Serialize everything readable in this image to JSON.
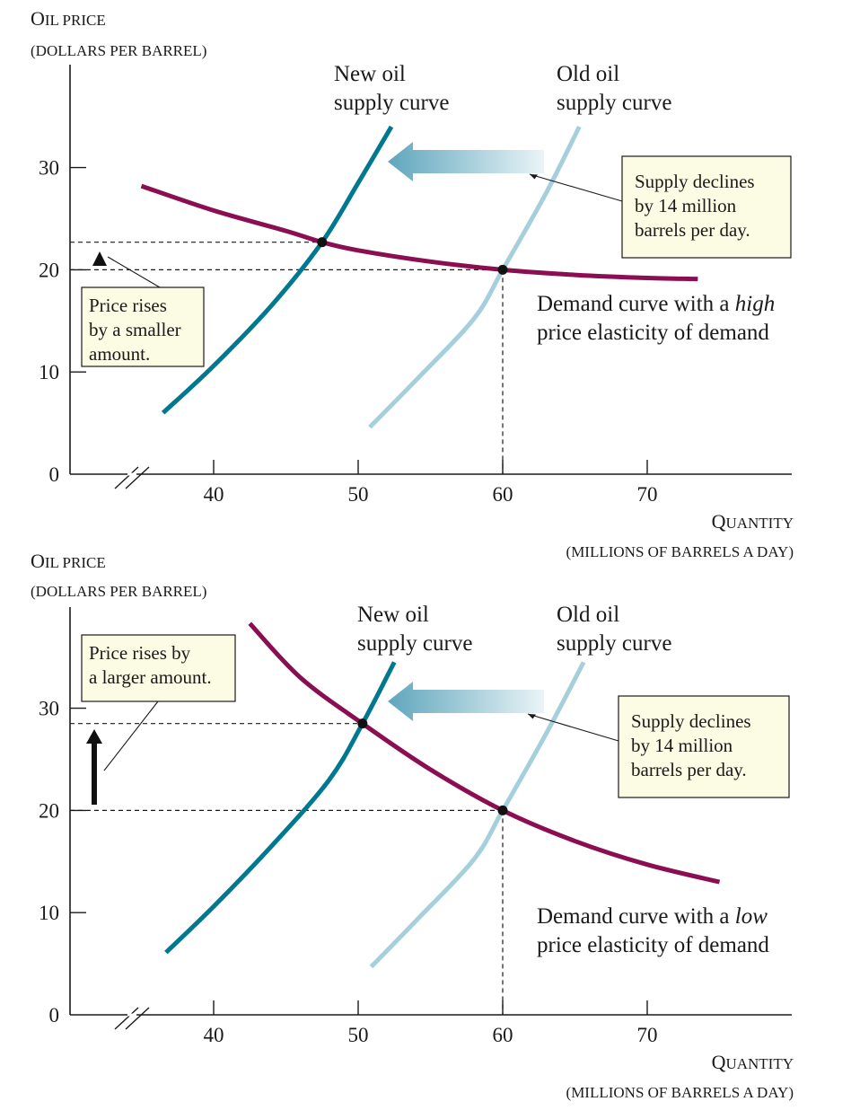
{
  "colors": {
    "demand": "#8b0e52",
    "new_supply": "#00788f",
    "old_supply": "#a6cfdc",
    "note_bg": "#fcfbe3",
    "axis": "#1a1a1a"
  },
  "chart_data": [
    {
      "type": "line",
      "ylabel_line1_cap": "O",
      "ylabel_line1_rest": "IL PRICE",
      "ylabel_line2": "(DOLLARS PER BARREL)",
      "xlabel_line1_cap": "Q",
      "xlabel_line1_rest": "UANTITY",
      "xlabel_line2": "(MILLIONS OF BARRELS A DAY)",
      "xlim": [
        30,
        80
      ],
      "ylim": [
        0,
        36
      ],
      "x_ticks": [
        40,
        50,
        60,
        70
      ],
      "y_ticks": [
        0,
        10,
        20,
        30
      ],
      "axis_break": "x",
      "series": [
        {
          "id": "demand",
          "x": [
            35,
            40,
            45,
            47.5,
            50,
            55,
            60,
            65,
            70,
            73.5
          ],
          "y": [
            28.2,
            25.8,
            23.8,
            22.7,
            21.9,
            20.8,
            20,
            19.5,
            19.2,
            19.1
          ]
        },
        {
          "name": "New oil supply curve",
          "id": "new_supply",
          "x": [
            36.5,
            40,
            44,
            47.5,
            50,
            52.3
          ],
          "y": [
            6,
            10.6,
            16.5,
            22.7,
            28.5,
            34
          ]
        },
        {
          "name": "Old oil supply curve",
          "id": "old_supply",
          "x": [
            50.8,
            54,
            58,
            60,
            63,
            65.3
          ],
          "y": [
            4.6,
            9.2,
            15.2,
            20,
            27.5,
            34
          ]
        }
      ],
      "equilibria": [
        {
          "x": 47.5,
          "y": 22.7
        },
        {
          "x": 60,
          "y": 20
        }
      ],
      "new_supply_label": [
        "New oil",
        "supply curve"
      ],
      "old_supply_label": [
        "Old oil",
        "supply curve"
      ],
      "supply_note": [
        "Supply declines",
        "by 14 million",
        "barrels per day."
      ],
      "price_note": [
        "Price rises",
        "by a smaller",
        "amount."
      ],
      "demand_label_line1_pre": "Demand curve with a ",
      "demand_label_line1_em": "high",
      "demand_label_line2": "price elasticity of demand"
    },
    {
      "type": "line",
      "ylabel_line1_cap": "O",
      "ylabel_line1_rest": "IL PRICE",
      "ylabel_line2": "(DOLLARS PER BARREL)",
      "xlabel_line1_cap": "Q",
      "xlabel_line1_rest": "UANTITY",
      "xlabel_line2": "(MILLIONS OF BARRELS A DAY)",
      "xlim": [
        30,
        80
      ],
      "ylim": [
        0,
        40
      ],
      "x_ticks": [
        40,
        50,
        60,
        70
      ],
      "y_ticks": [
        0,
        10,
        20,
        30
      ],
      "axis_break": "x",
      "series": [
        {
          "id": "demand",
          "x": [
            42.5,
            46,
            50.3,
            55,
            60,
            65,
            70,
            75
          ],
          "y": [
            38.3,
            33,
            28.5,
            24,
            20,
            17,
            14.7,
            13
          ]
        },
        {
          "name": "New oil supply curve",
          "id": "new_supply",
          "x": [
            36.7,
            40,
            44,
            48,
            50.3,
            52.5
          ],
          "y": [
            6.1,
            10.6,
            16.5,
            23,
            28.5,
            34.5
          ]
        },
        {
          "name": "Old oil supply curve",
          "id": "old_supply",
          "x": [
            50.9,
            54,
            58,
            60,
            63,
            65.6
          ],
          "y": [
            4.7,
            9.2,
            15.2,
            20,
            27.5,
            34.5
          ]
        }
      ],
      "equilibria": [
        {
          "x": 50.3,
          "y": 28.5
        },
        {
          "x": 60,
          "y": 20
        }
      ],
      "new_supply_label": [
        "New oil",
        "supply curve"
      ],
      "old_supply_label": [
        "Old oil",
        "supply curve"
      ],
      "supply_note": [
        "Supply declines",
        "by 14 million",
        "barrels per day."
      ],
      "price_note": [
        "Price rises by",
        "a larger amount."
      ],
      "demand_label_line1_pre": "Demand curve with a ",
      "demand_label_line1_em": "low",
      "demand_label_line2": "price elasticity of demand"
    }
  ]
}
